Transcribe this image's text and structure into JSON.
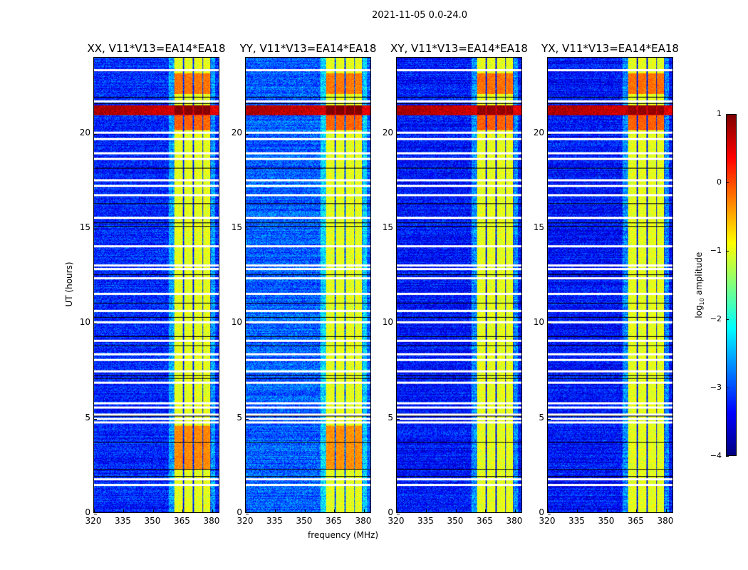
{
  "figure_title": "2021-11-05 0.0-24.0",
  "chart_data": {
    "type": "heatmap",
    "title": "2021-11-05 0.0-24.0",
    "xlabel": "frequency (MHz)",
    "ylabel": "UT (hours)",
    "xlim": [
      320,
      384
    ],
    "ylim": [
      0,
      24
    ],
    "xticks": [
      "320",
      "335",
      "350",
      "365",
      "380"
    ],
    "xtick_values": [
      320,
      335,
      350,
      365,
      380
    ],
    "yticks": [
      "0",
      "5",
      "10",
      "15",
      "20"
    ],
    "ytick_values": [
      0,
      5,
      10,
      15,
      20
    ],
    "panels": [
      {
        "title": "XX, V11*V13=EA14*EA18",
        "base": -3.2,
        "band_boost": 1.0
      },
      {
        "title": "YY, V11*V13=EA14*EA18",
        "base": -2.9,
        "band_boost": 1.1
      },
      {
        "title": "XY, V11*V13=EA14*EA18",
        "base": -3.3,
        "band_boost": 0.9
      },
      {
        "title": "YX, V11*V13=EA14*EA18",
        "base": -3.3,
        "band_boost": 0.9
      }
    ],
    "bright_subbands_mhz": [
      [
        361,
        365.5
      ],
      [
        366,
        370.5
      ],
      [
        371,
        375.5
      ],
      [
        376,
        379.5
      ]
    ],
    "band_level_log10": -1.0,
    "rfi_intervals": [
      {
        "t": [
          21.0,
          21.5
        ],
        "level": 0.8,
        "band_level": 1.0
      },
      {
        "t": [
          22.1,
          23.2
        ],
        "level": null,
        "band_level": -0.2
      },
      {
        "t": [
          20.2,
          21.0
        ],
        "level": null,
        "band_level": -0.1
      },
      {
        "t": [
          2.3,
          4.6
        ],
        "level": null,
        "band_level": -0.3
      }
    ],
    "flagged_white_hours": [
      23.4,
      21.75,
      20.1,
      19.75,
      19.0,
      18.7,
      17.6,
      17.3,
      16.8,
      15.6,
      14.1,
      13.1,
      12.9,
      12.4,
      11.6,
      10.7,
      10.1,
      9.1,
      8.4,
      8.1,
      7.5,
      6.9,
      5.8,
      5.6,
      5.2,
      5.0,
      4.8,
      1.8,
      1.5
    ],
    "flagged_black_hours": [
      21.95,
      21.6,
      18.2,
      16.3,
      15.3,
      15.1,
      12.55,
      11.05,
      10.3,
      9.3,
      8.8,
      7.25,
      7.1,
      5.1,
      3.7,
      2.3,
      1.9
    ],
    "colorbar": {
      "label": "log10 amplitude",
      "colormap": "jet",
      "range": [
        -4,
        1
      ],
      "ticks": [
        "1",
        "0",
        "−1",
        "−2",
        "−3",
        "−4"
      ],
      "tick_values": [
        1,
        0,
        -1,
        -2,
        -3,
        -4
      ]
    }
  }
}
